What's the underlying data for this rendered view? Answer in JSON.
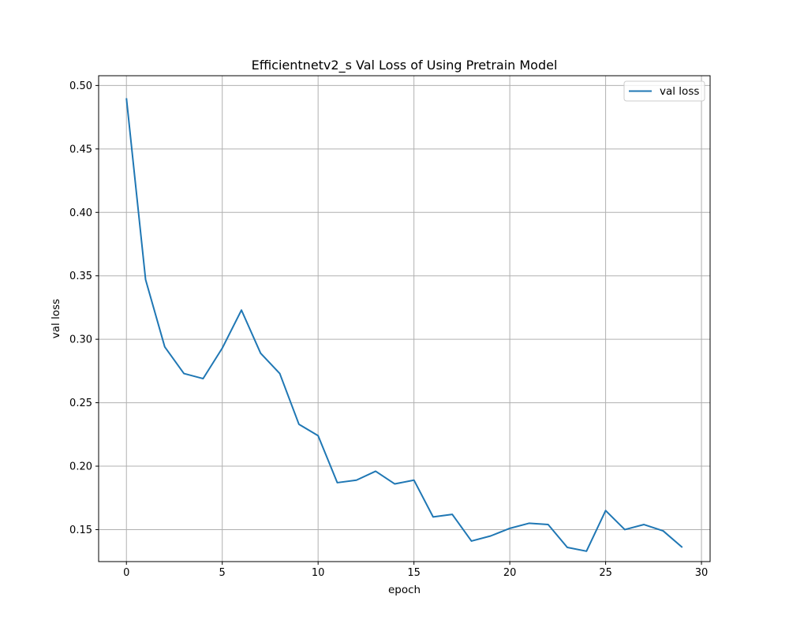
{
  "chart_data": {
    "type": "line",
    "title": "Efficientnetv2_s Val Loss of Using Pretrain Model",
    "xlabel": "epoch",
    "ylabel": "val loss",
    "xlim": [
      -1.45,
      30.45
    ],
    "ylim": [
      0.1248,
      0.5077
    ],
    "x_ticks": [
      0,
      5,
      10,
      15,
      20,
      25,
      30
    ],
    "x_tick_labels": [
      "0",
      "5",
      "10",
      "15",
      "20",
      "25",
      "30"
    ],
    "y_ticks": [
      0.15,
      0.2,
      0.25,
      0.3,
      0.35,
      0.4,
      0.45,
      0.5
    ],
    "y_tick_labels": [
      "0.15",
      "0.20",
      "0.25",
      "0.30",
      "0.35",
      "0.40",
      "0.45",
      "0.50"
    ],
    "grid": true,
    "legend_position": "top-right",
    "series": [
      {
        "name": "val loss",
        "color": "#1f77b4",
        "x": [
          0,
          1,
          2,
          3,
          4,
          5,
          6,
          7,
          8,
          9,
          10,
          11,
          12,
          13,
          14,
          15,
          16,
          17,
          18,
          19,
          20,
          21,
          22,
          23,
          24,
          25,
          26,
          27,
          28,
          29
        ],
        "y": [
          0.49,
          0.347,
          0.294,
          0.273,
          0.269,
          0.293,
          0.323,
          0.289,
          0.273,
          0.233,
          0.224,
          0.187,
          0.189,
          0.196,
          0.186,
          0.189,
          0.16,
          0.162,
          0.141,
          0.145,
          0.151,
          0.155,
          0.154,
          0.136,
          0.133,
          0.165,
          0.15,
          0.154,
          0.149,
          0.136
        ]
      }
    ]
  }
}
